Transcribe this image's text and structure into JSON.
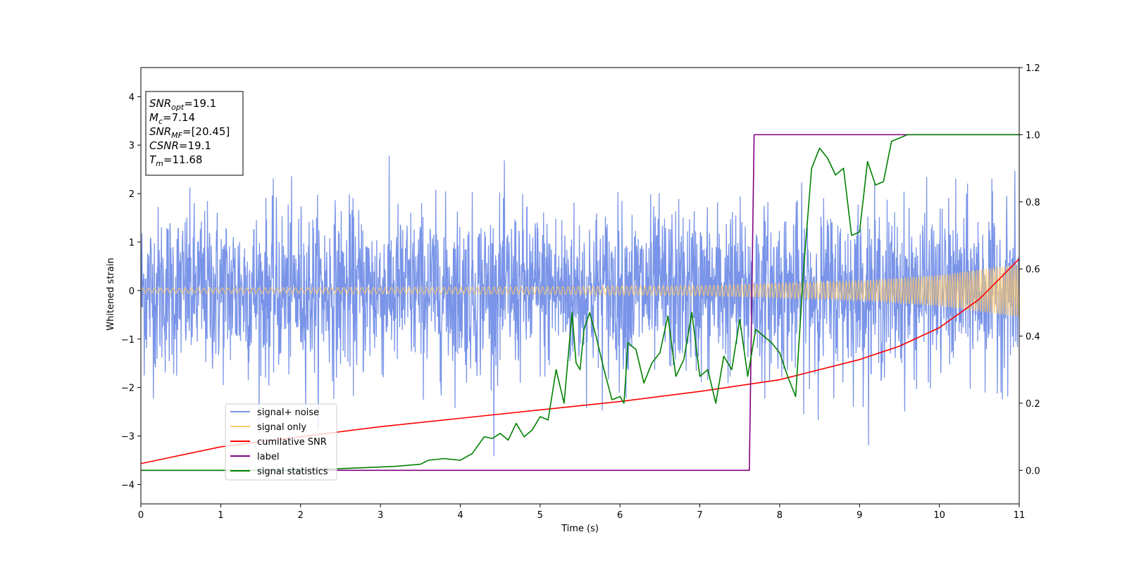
{
  "chart_data": {
    "type": "line",
    "xlabel": "Time (s)",
    "ylabel": "Whitened strain",
    "xlim": [
      0,
      11
    ],
    "ylim_left": [
      -4.4,
      4.6
    ],
    "ylim_right": [
      -0.1,
      1.2
    ],
    "x_ticks": [
      "0",
      "1",
      "2",
      "3",
      "4",
      "5",
      "6",
      "7",
      "8",
      "9",
      "10",
      "11"
    ],
    "y_ticks_left": [
      "−4",
      "−3",
      "−2",
      "−1",
      "0",
      "1",
      "2",
      "3",
      "4"
    ],
    "y_ticks_right": [
      "0.0",
      "0.2",
      "0.4",
      "0.6",
      "0.8",
      "1.0",
      "1.2"
    ],
    "grid": false,
    "legend_position": "lower-left",
    "annotation": {
      "lines": [
        {
          "var": "SNR",
          "sub": "opt",
          "value": "=19.1"
        },
        {
          "var": "M",
          "sub": "c",
          "value": "=7.14"
        },
        {
          "var": "SNR",
          "sub": "MF",
          "value": "=[20.45]"
        },
        {
          "var": "CSNR",
          "sub": "",
          "value": "=19.1"
        },
        {
          "var": "T",
          "sub": "m",
          "value": "=11.68"
        }
      ]
    },
    "series": [
      {
        "name": "signal+ noise",
        "axis": "left",
        "color": "#7994e8",
        "style": "noise",
        "sigma": 0.85,
        "x_range": [
          0,
          11
        ]
      },
      {
        "name": "signal only",
        "axis": "left",
        "color": "#ffc869",
        "style": "chirp",
        "amplitude_points": [
          [
            0,
            0.05
          ],
          [
            4,
            0.07
          ],
          [
            7,
            0.1
          ],
          [
            9,
            0.2
          ],
          [
            10,
            0.32
          ],
          [
            11,
            0.55
          ]
        ]
      },
      {
        "name": "cumilative SNR",
        "axis": "right",
        "color": "#ff0000",
        "x": [
          0,
          1,
          2,
          3,
          4,
          5,
          6,
          7,
          8,
          9,
          9.5,
          10,
          10.5,
          11
        ],
        "y": [
          0.02,
          0.07,
          0.1,
          0.13,
          0.155,
          0.18,
          0.205,
          0.235,
          0.27,
          0.33,
          0.37,
          0.425,
          0.51,
          0.63
        ]
      },
      {
        "name": "label",
        "axis": "right",
        "color": "#800080",
        "x": [
          0,
          7.62,
          7.68,
          11
        ],
        "y": [
          0.0,
          0.0,
          1.0,
          1.0
        ]
      },
      {
        "name": "signal statistics",
        "axis": "right",
        "color": "#008000",
        "x": [
          0,
          0.5,
          1,
          1.5,
          2,
          2.5,
          3,
          3.2,
          3.5,
          3.6,
          3.8,
          4.0,
          4.15,
          4.3,
          4.4,
          4.5,
          4.6,
          4.7,
          4.8,
          4.9,
          5.0,
          5.1,
          5.2,
          5.25,
          5.3,
          5.4,
          5.45,
          5.5,
          5.55,
          5.62,
          5.7,
          5.8,
          5.9,
          6.0,
          6.05,
          6.1,
          6.2,
          6.3,
          6.4,
          6.5,
          6.6,
          6.7,
          6.8,
          6.9,
          7.0,
          7.1,
          7.2,
          7.3,
          7.4,
          7.5,
          7.6,
          7.65,
          7.7,
          7.8,
          7.9,
          8.0,
          8.1,
          8.2,
          8.3,
          8.4,
          8.5,
          8.6,
          8.7,
          8.8,
          8.9,
          9.0,
          9.1,
          9.2,
          9.3,
          9.4,
          9.6,
          10,
          11
        ],
        "y": [
          0.0,
          0.0,
          0.0,
          0.0,
          0.0,
          0.005,
          0.01,
          0.012,
          0.018,
          0.03,
          0.035,
          0.03,
          0.05,
          0.1,
          0.095,
          0.11,
          0.09,
          0.14,
          0.1,
          0.12,
          0.16,
          0.15,
          0.3,
          0.25,
          0.2,
          0.47,
          0.32,
          0.3,
          0.42,
          0.47,
          0.4,
          0.3,
          0.21,
          0.22,
          0.2,
          0.38,
          0.36,
          0.26,
          0.32,
          0.35,
          0.46,
          0.28,
          0.33,
          0.47,
          0.28,
          0.3,
          0.2,
          0.34,
          0.3,
          0.45,
          0.28,
          0.35,
          0.42,
          0.4,
          0.38,
          0.35,
          0.28,
          0.22,
          0.6,
          0.9,
          0.96,
          0.93,
          0.88,
          0.9,
          0.7,
          0.71,
          0.92,
          0.85,
          0.86,
          0.98,
          1.0,
          1.0,
          1.0
        ]
      }
    ]
  }
}
